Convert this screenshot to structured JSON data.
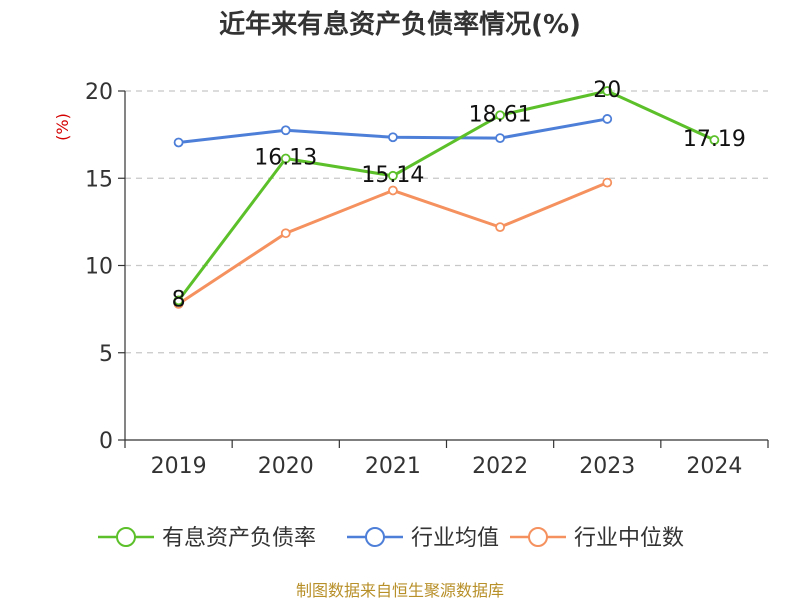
{
  "chart_data": {
    "type": "line",
    "title": "近年来有息资产负债率情况(%)",
    "ylabel": "(%)",
    "xlabel": "",
    "categories": [
      "2019",
      "2020",
      "2021",
      "2022",
      "2023",
      "2024"
    ],
    "ylim": [
      0,
      20
    ],
    "yticks": [
      0,
      5,
      10,
      15,
      20
    ],
    "grid": true,
    "legend_position": "bottom",
    "series": [
      {
        "name": "有息资产负债率",
        "color": "#5cc02a",
        "values": [
          8,
          16.13,
          15.14,
          18.61,
          20,
          17.19
        ],
        "labels": [
          "8",
          "16.13",
          "15.14",
          "18.61",
          "20",
          "17.19"
        ]
      },
      {
        "name": "行业均值",
        "color": "#4e7fd8",
        "values": [
          17.05,
          17.75,
          17.35,
          17.3,
          18.4,
          null
        ]
      },
      {
        "name": "行业中位数",
        "color": "#f5915e",
        "values": [
          7.8,
          11.85,
          14.3,
          12.2,
          14.75,
          null
        ]
      }
    ]
  },
  "source": "制图数据来自恒生聚源数据库"
}
